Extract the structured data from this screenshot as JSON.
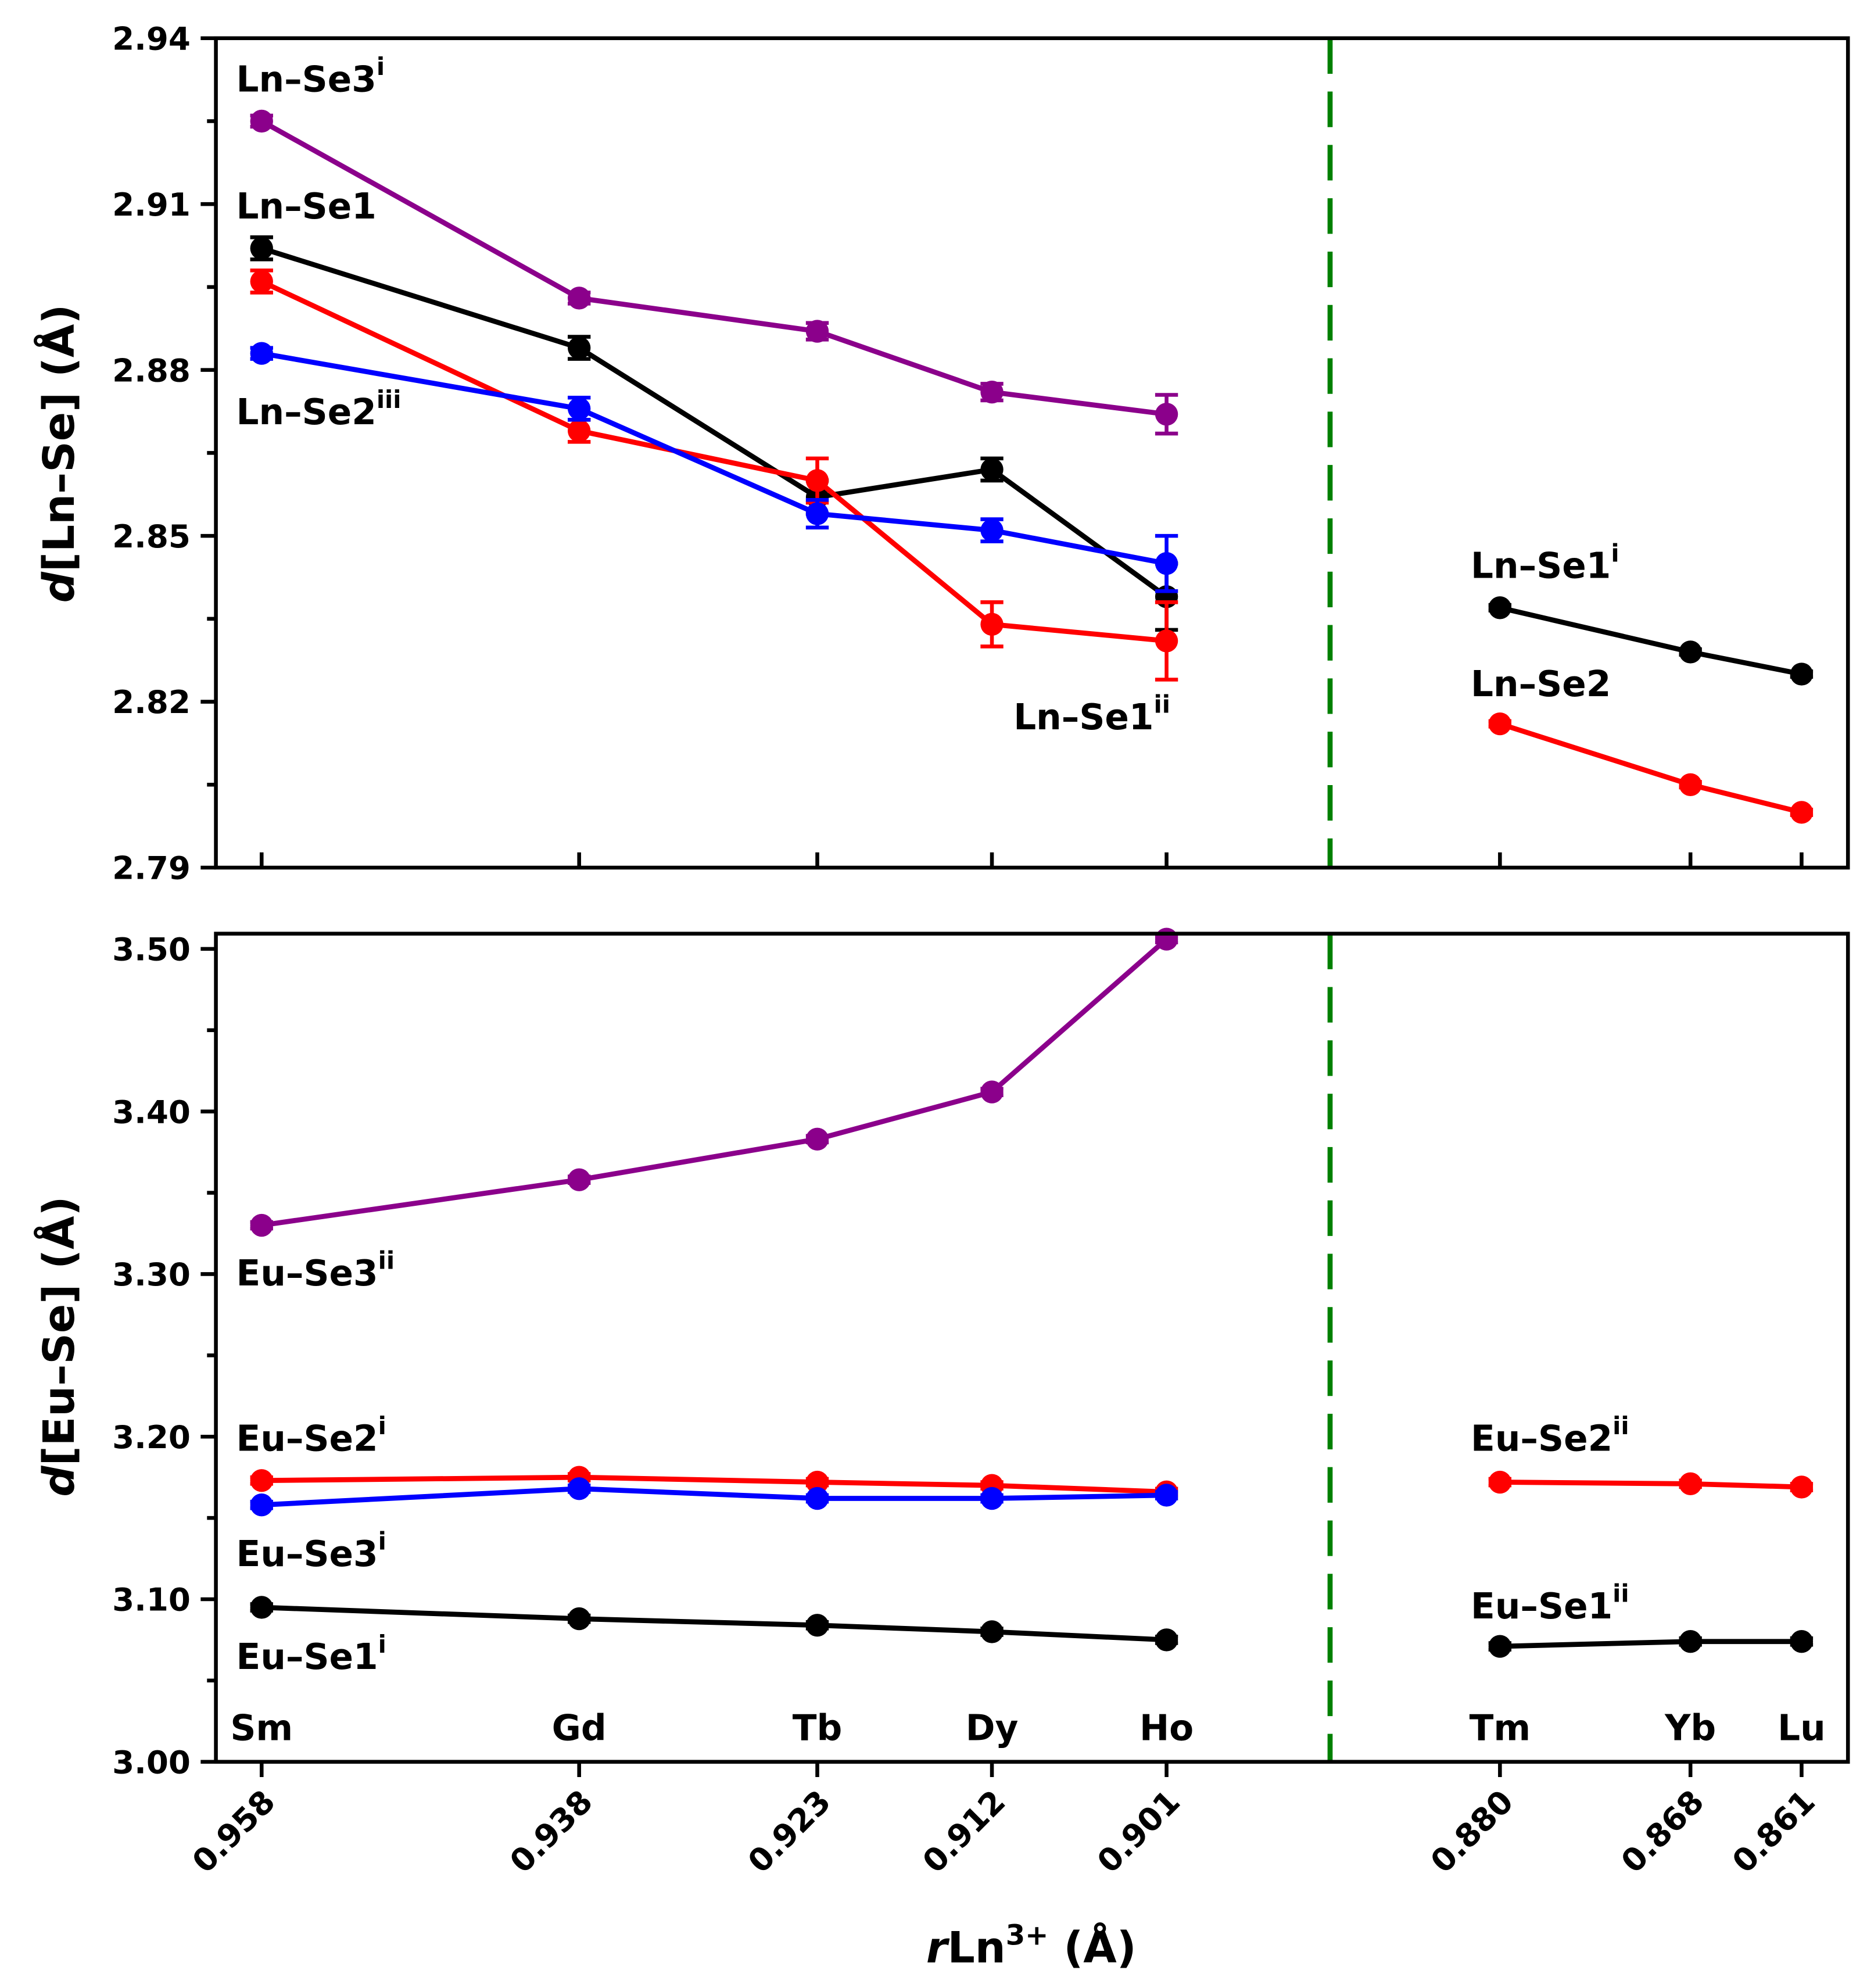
{
  "chart_data": [
    {
      "type": "line",
      "panel": "top",
      "ylabel": {
        "italic": "d",
        "rest": "[Ln–Se] (Å)"
      },
      "ylim": [
        2.79,
        2.94
      ],
      "yticks": [
        "2.79",
        "2.82",
        "2.85",
        "2.88",
        "2.91",
        "2.94"
      ],
      "divider_x": 0.8907,
      "divider_color": "#008000",
      "series": [
        {
          "name": "Ln–Se3i",
          "color": "#8B008B",
          "x": [
            0.958,
            0.938,
            0.923,
            0.912,
            0.901
          ],
          "values": [
            2.925,
            2.893,
            2.887,
            2.876,
            2.872
          ],
          "errors": [
            0.001,
            0.001,
            0.0015,
            0.0015,
            0.0035
          ]
        },
        {
          "name": "Ln–Se1",
          "color": "#000000",
          "x": [
            0.958,
            0.938,
            0.923,
            0.912,
            0.901
          ],
          "values": [
            2.902,
            2.884,
            2.857,
            2.862,
            2.839
          ],
          "errors": [
            0.002,
            0.002,
            0.003,
            0.002,
            0.006
          ]
        },
        {
          "name": "Ln–Se2",
          "color": "#FF0000",
          "x": [
            0.958,
            0.938,
            0.923,
            0.912,
            0.901
          ],
          "values": [
            2.896,
            2.869,
            2.86,
            2.834,
            2.831
          ],
          "errors": [
            0.002,
            0.002,
            0.004,
            0.004,
            0.007
          ]
        },
        {
          "name": "Ln–Se2iii",
          "color": "#0000FF",
          "x": [
            0.958,
            0.938,
            0.923,
            0.912,
            0.901
          ],
          "values": [
            2.883,
            2.873,
            2.854,
            2.851,
            2.845
          ],
          "errors": [
            0.001,
            0.002,
            0.0025,
            0.002,
            0.005
          ]
        },
        {
          "name": "Ln–Se1i",
          "color": "#000000",
          "x": [
            0.88,
            0.868,
            0.861
          ],
          "values": [
            2.837,
            2.829,
            2.825
          ],
          "errors": [
            0.0005,
            0.0005,
            0.0005
          ]
        },
        {
          "name": "Ln–Se2 (right)",
          "color": "#FF0000",
          "x": [
            0.88,
            0.868,
            0.861
          ],
          "values": [
            2.816,
            2.805,
            2.8
          ],
          "errors": [
            0.0005,
            0.0005,
            0.0005
          ]
        }
      ],
      "annotations": [
        {
          "base": "Ln–Se3",
          "sup": "i"
        },
        {
          "base": "Ln–Se1",
          "sup": ""
        },
        {
          "base": "Ln–Se2",
          "sup": "iii"
        },
        {
          "base": "Ln–Se1",
          "sup": "ii"
        },
        {
          "base": "Ln–Se1",
          "sup": "i"
        },
        {
          "base": "Ln–Se2",
          "sup": ""
        }
      ]
    },
    {
      "type": "line",
      "panel": "bottom",
      "ylabel": {
        "italic": "d",
        "rest": "[Eu–Se] (Å)"
      },
      "ylim": [
        3.0,
        3.51
      ],
      "yticks": [
        "3.00",
        "3.10",
        "3.20",
        "3.30",
        "3.40",
        "3.50"
      ],
      "xlabel": {
        "italic": "r",
        "rest": "Ln",
        "sup": "3+",
        "unit": " (Å)"
      },
      "xticks": [
        "0.958",
        "0.938",
        "0.923",
        "0.912",
        "0.901",
        "0.880",
        "0.868",
        "0.861"
      ],
      "x": [
        0.958,
        0.938,
        0.923,
        0.912,
        0.901,
        0.88,
        0.868,
        0.861
      ],
      "elements": [
        "Sm",
        "Gd",
        "Tb",
        "Dy",
        "Ho",
        "Tm",
        "Yb",
        "Lu"
      ],
      "series": [
        {
          "name": "Eu–Se3ii",
          "color": "#8B008B",
          "x": [
            0.958,
            0.938,
            0.923,
            0.912,
            0.901
          ],
          "values": [
            3.33,
            3.358,
            3.383,
            3.412,
            3.506
          ],
          "errors": [
            0.002,
            0.002,
            0.002,
            0.002,
            0.002
          ]
        },
        {
          "name": "Eu–Se2i",
          "color": "#FF0000",
          "x": [
            0.958,
            0.938,
            0.923,
            0.912,
            0.901
          ],
          "values": [
            3.173,
            3.175,
            3.172,
            3.17,
            3.166
          ],
          "errors": [
            0.002,
            0.002,
            0.002,
            0.002,
            0.002
          ]
        },
        {
          "name": "Eu–Se3i",
          "color": "#0000FF",
          "x": [
            0.958,
            0.938,
            0.923,
            0.912,
            0.901
          ],
          "values": [
            3.158,
            3.168,
            3.162,
            3.162,
            3.164
          ],
          "errors": [
            0.002,
            0.002,
            0.002,
            0.002,
            0.002
          ]
        },
        {
          "name": "Eu–Se1i",
          "color": "#000000",
          "x": [
            0.958,
            0.938,
            0.923,
            0.912,
            0.901
          ],
          "values": [
            3.095,
            3.088,
            3.084,
            3.08,
            3.075
          ],
          "errors": [
            0.002,
            0.002,
            0.002,
            0.002,
            0.002
          ]
        },
        {
          "name": "Eu–Se2ii",
          "color": "#FF0000",
          "x": [
            0.88,
            0.868,
            0.861
          ],
          "values": [
            3.172,
            3.171,
            3.169
          ],
          "errors": [
            0.002,
            0.002,
            0.002
          ]
        },
        {
          "name": "Eu–Se1ii",
          "color": "#000000",
          "x": [
            0.88,
            0.868,
            0.861
          ],
          "values": [
            3.071,
            3.074,
            3.074
          ],
          "errors": [
            0.002,
            0.002,
            0.002
          ]
        }
      ],
      "annotations": [
        {
          "base": "Eu–Se3",
          "sup": "ii"
        },
        {
          "base": "Eu–Se2",
          "sup": "i"
        },
        {
          "base": "Eu–Se3",
          "sup": "i"
        },
        {
          "base": "Eu–Se1",
          "sup": "i"
        },
        {
          "base": "Eu–Se2",
          "sup": "ii"
        },
        {
          "base": "Eu–Se1",
          "sup": "ii"
        }
      ]
    }
  ]
}
